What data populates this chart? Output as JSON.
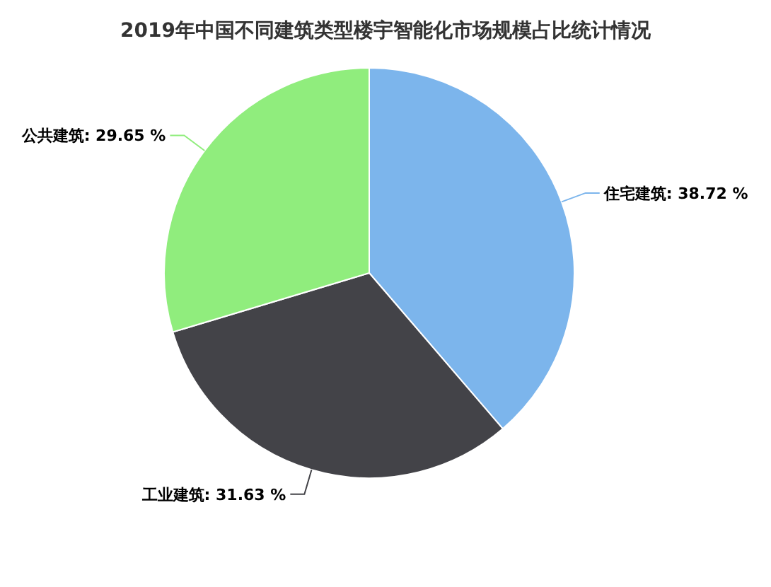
{
  "chart_data": {
    "type": "pie",
    "title": "2019年中国不同建筑类型楼宇智能化市场规模占比统计情况",
    "categories": [
      "住宅建筑",
      "工业建筑",
      "公共建筑"
    ],
    "values": [
      38.72,
      31.63,
      29.65
    ],
    "value_labels": [
      "38.72 %",
      "31.63 %",
      "29.65 %"
    ],
    "colors": [
      "#7cb5ec",
      "#434348",
      "#90ed7d"
    ]
  }
}
